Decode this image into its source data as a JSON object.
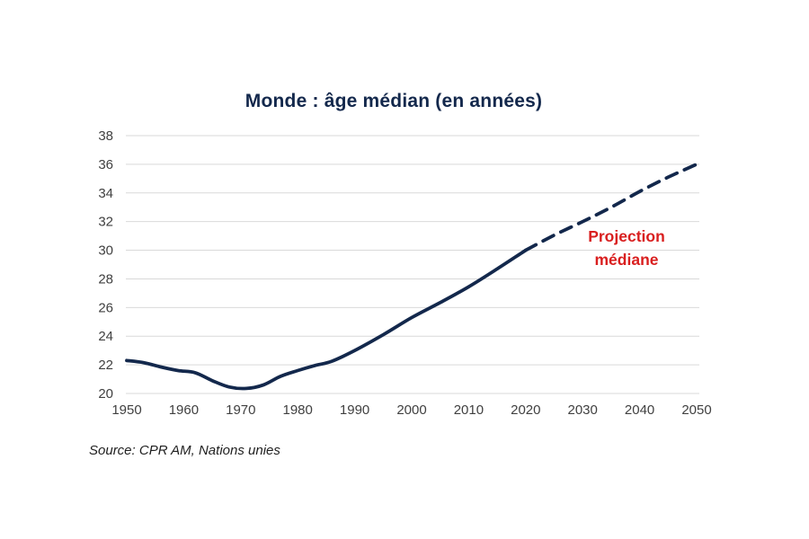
{
  "page": {
    "background": "#ffffff"
  },
  "chart_data": {
    "type": "line",
    "title": "Monde : âge médian (en années)",
    "xlabel": "",
    "ylabel": "",
    "xlim": [
      1950,
      2050
    ],
    "ylim": [
      20,
      38
    ],
    "xtick_step": 10,
    "ytick_step": 2,
    "grid": "horizontal",
    "legend": "none",
    "colors": {
      "line": "#13284c",
      "grid": "#d9d9d9",
      "axis_text": "#404040",
      "title": "#13284c",
      "annotation": "#d91f1f"
    },
    "series": [
      {
        "name": "âge médian observé",
        "style": "solid",
        "x": [
          1950,
          1953,
          1956,
          1959,
          1962,
          1965,
          1968,
          1971,
          1974,
          1977,
          1980,
          1983,
          1986,
          1990,
          1995,
          2000,
          2005,
          2010,
          2015,
          2020
        ],
        "values": [
          22.3,
          22.15,
          21.85,
          21.6,
          21.45,
          20.9,
          20.45,
          20.35,
          20.6,
          21.2,
          21.6,
          21.95,
          22.25,
          23.0,
          24.1,
          25.3,
          26.35,
          27.45,
          28.7,
          30.0
        ]
      },
      {
        "name": "projection médiane",
        "style": "dashed",
        "x": [
          2020,
          2025,
          2030,
          2035,
          2040,
          2045,
          2050
        ],
        "values": [
          30.0,
          31.05,
          32.0,
          33.0,
          34.1,
          35.1,
          36.0
        ]
      }
    ],
    "annotation": {
      "line1": "Projection",
      "line2": "médiane"
    },
    "yticks": [
      20,
      22,
      24,
      26,
      28,
      30,
      32,
      34,
      36,
      38
    ],
    "xticks": [
      1950,
      1960,
      1970,
      1980,
      1990,
      2000,
      2010,
      2020,
      2030,
      2040,
      2050
    ]
  },
  "source": {
    "text": "Source: CPR AM, Nations unies"
  }
}
